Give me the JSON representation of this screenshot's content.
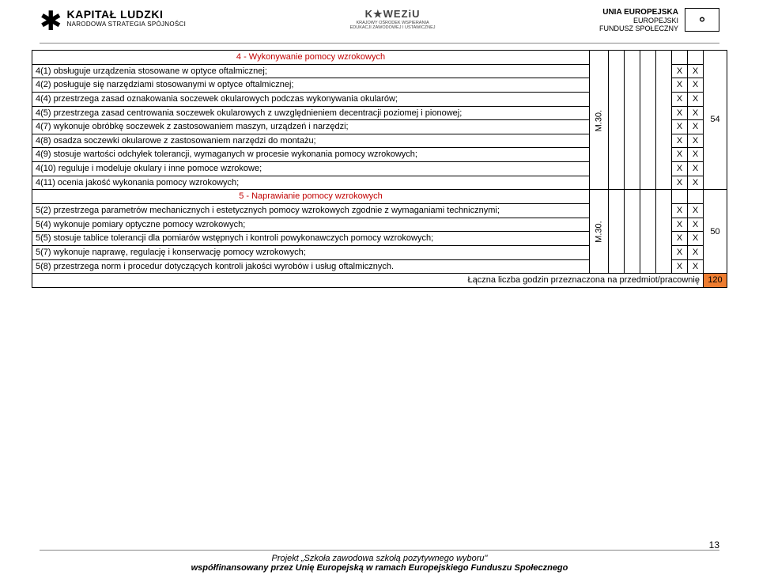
{
  "header": {
    "left_title": "KAPITAŁ LUDZKI",
    "left_sub": "NARODOWA STRATEGIA SPÓJNOŚCI",
    "center_brand": "K★WEZiU",
    "center_sub1": "KRAJOWY OŚRODEK WSPIERANIA",
    "center_sub2": "EDUKACJI ZAWODOWEJ I USTAWICZNEJ",
    "right_line1": "UNIA EUROPEJSKA",
    "right_line2": "EUROPEJSKI",
    "right_line3": "FUNDUSZ SPOŁECZNY"
  },
  "section4": {
    "title": "4 - Wykonywanie pomocy wzrokowych",
    "module": "M.30.",
    "hours": "54",
    "rows": [
      "4(1) obsługuje urządzenia stosowane w optyce oftalmicznej;",
      "4(2) posługuje się narzędziami stosowanymi w optyce oftalmicznej;",
      "4(4) przestrzega zasad oznakowania soczewek okularowych podczas wykonywania okularów;",
      "4(5) przestrzega zasad centrowania soczewek okularowych z uwzględnieniem decentracji poziomej i pionowej;",
      "4(7) wykonuje obróbkę soczewek z zastosowaniem maszyn, urządzeń i narzędzi;",
      "4(8) osadza soczewki okularowe z zastosowaniem narzędzi do montażu;",
      "4(9) stosuje wartości odchyłek tolerancji, wymaganych w procesie wykonania pomocy wzrokowych;",
      "4(10) reguluje i modeluje okulary i inne pomoce wzrokowe;",
      "4(11) ocenia jakość wykonania pomocy wzrokowych;"
    ]
  },
  "section5": {
    "title": "5 - Naprawianie pomocy wzrokowych",
    "module": "M.30.",
    "hours": "50",
    "rows": [
      "5(2) przestrzega parametrów mechanicznych i estetycznych pomocy wzrokowych zgodnie z wymaganiami technicznymi;",
      "5(4) wykonuje pomiary optyczne pomocy wzrokowych;",
      "5(5) stosuje tablice tolerancji dla pomiarów wstępnych i kontroli powykonawczych pomocy wzrokowych;",
      "5(7) wykonuje naprawę, regulację i konserwację pomocy wzrokowych;",
      "5(8) przestrzega norm i procedur dotyczących kontroli jakości wyrobów i usług oftalmicznych."
    ]
  },
  "total": {
    "label": "Łączna liczba godzin przeznaczona na przedmiot/pracownię",
    "value": "120"
  },
  "mark": "X",
  "footer": {
    "line1": "Projekt „Szkoła zawodowa szkołą pozytywnego wyboru\"",
    "line2": "współfinansowany przez Unię Europejską w ramach Europejskiego Funduszu Społecznego",
    "page": "13"
  }
}
